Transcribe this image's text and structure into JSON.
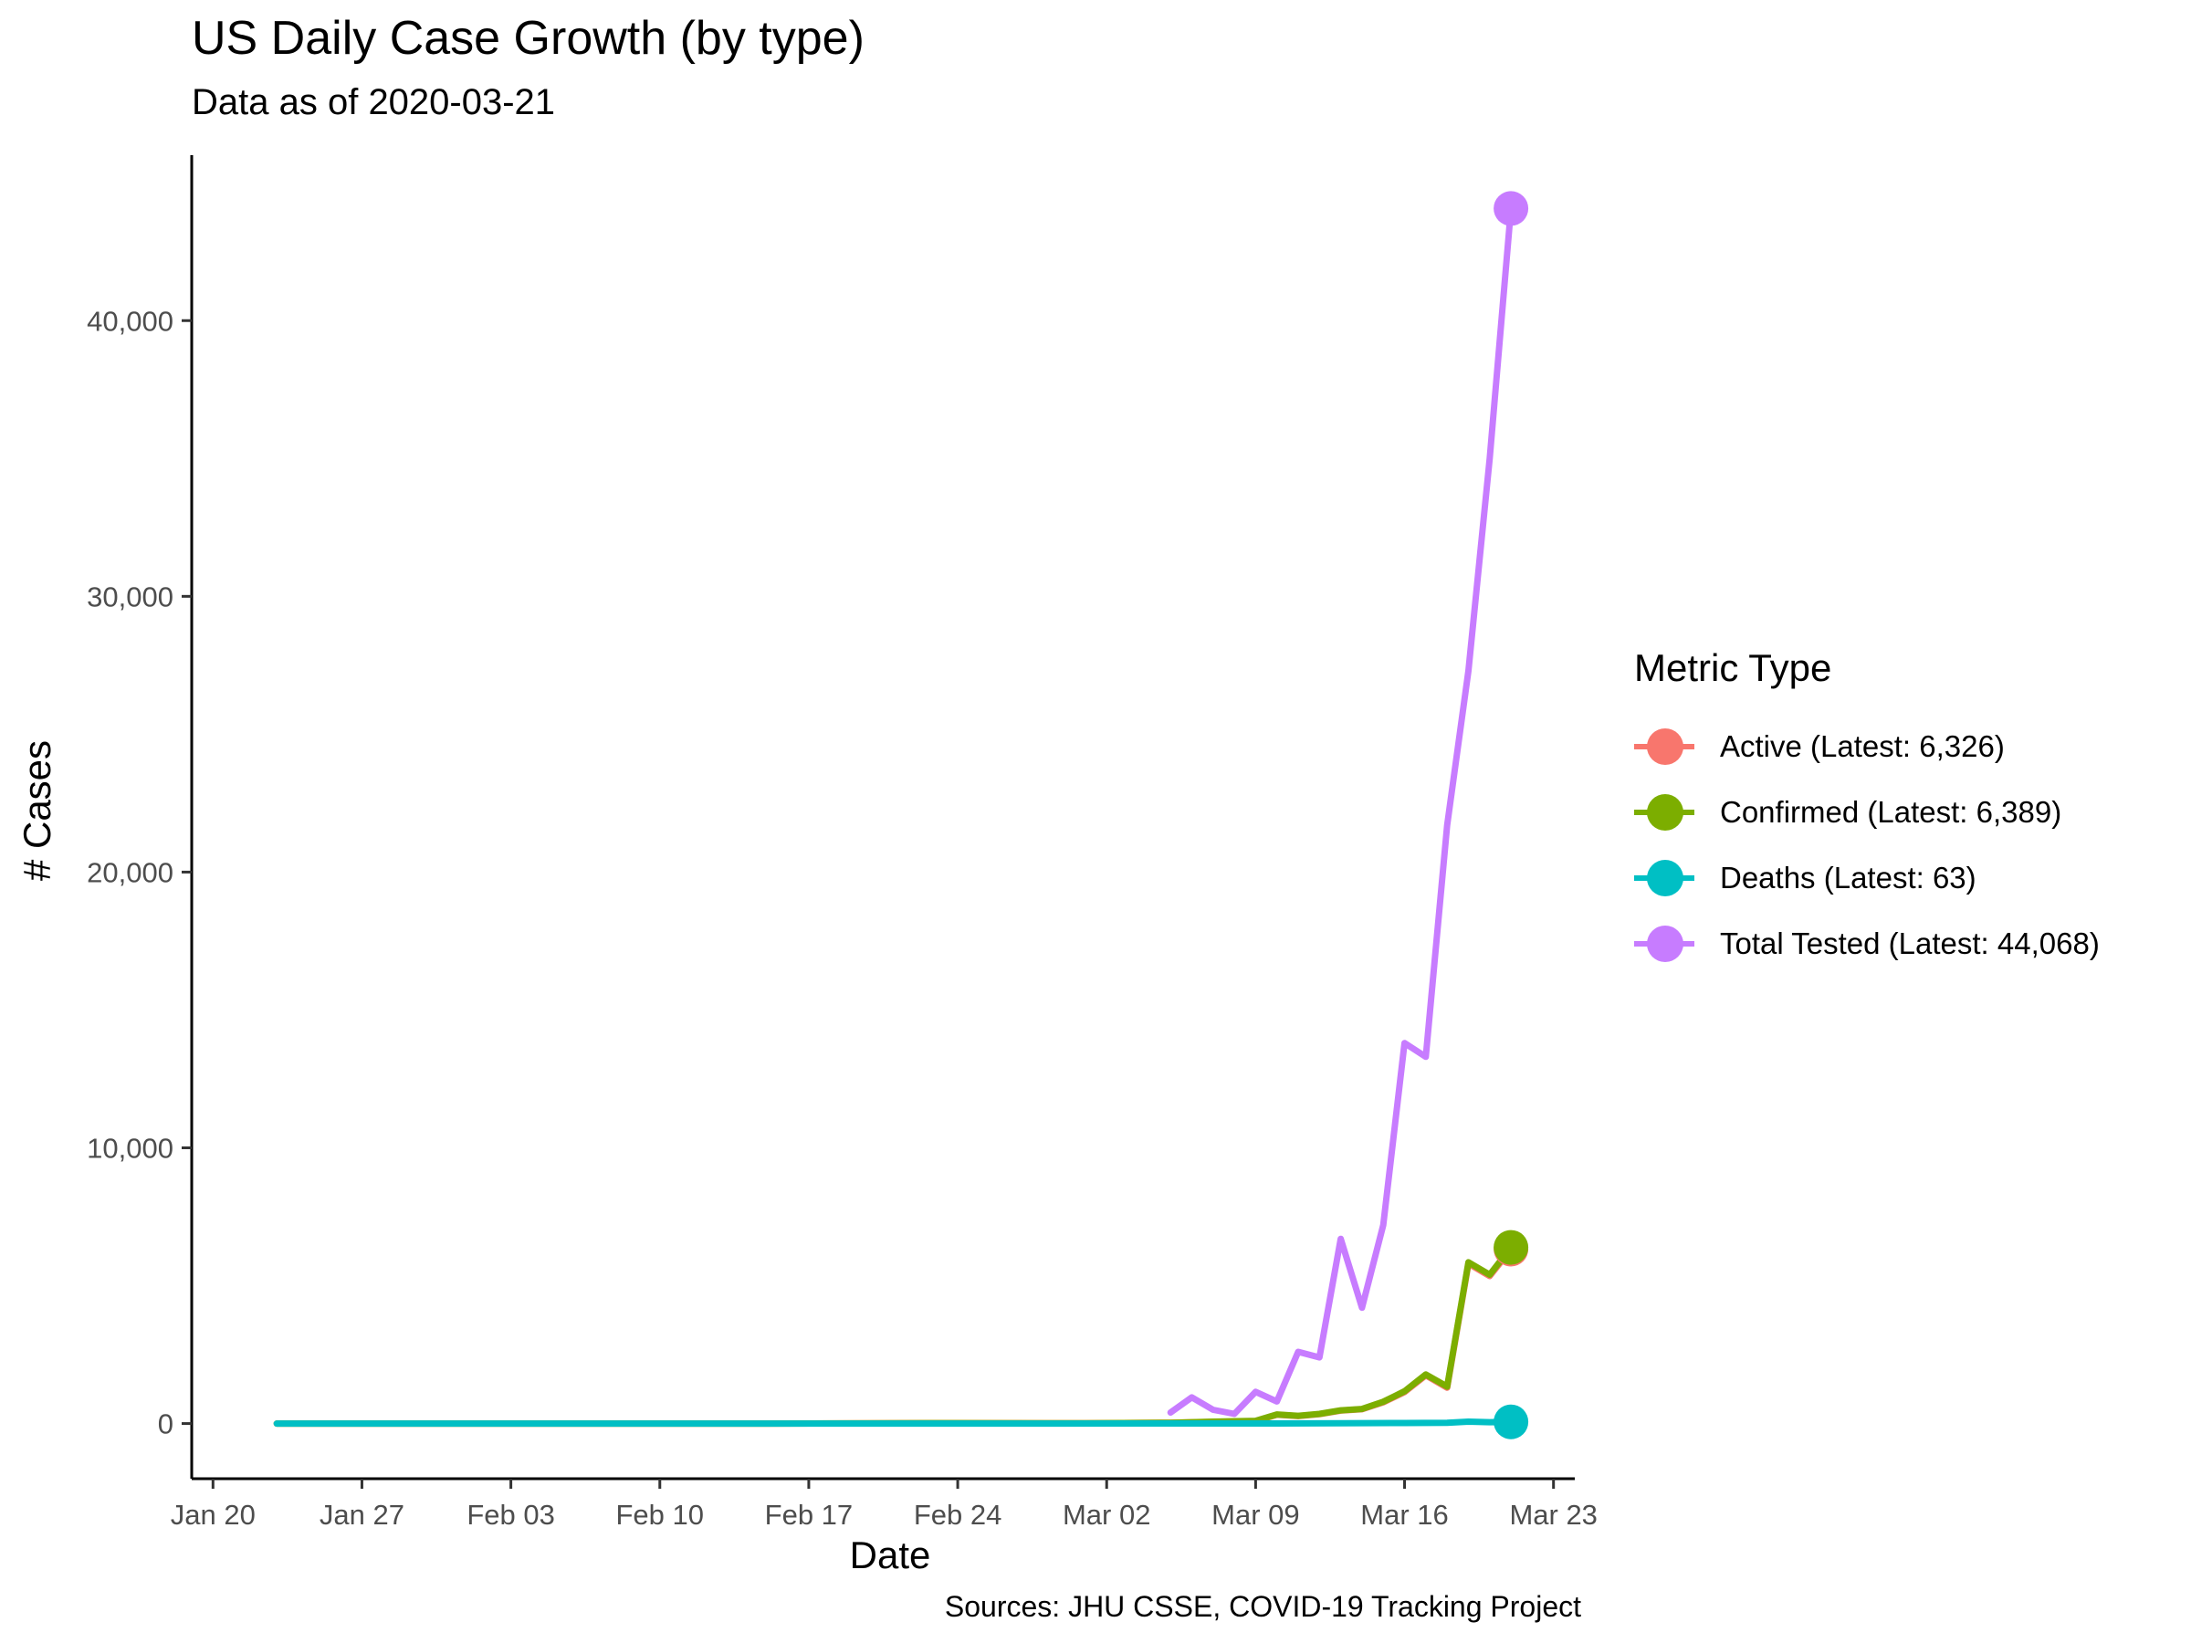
{
  "chart_data": {
    "type": "line",
    "title": "US Daily Case Growth (by type)",
    "subtitle": "Data as of 2020-03-21",
    "xlabel": "Date",
    "ylabel": "# Cases",
    "caption": "Sources: JHU CSSE, COVID-19 Tracking Project",
    "legend_title": "Metric Type",
    "legend_position": "right",
    "grid": false,
    "x_type": "date",
    "xlim": [
      "2020-01-19",
      "2020-03-24"
    ],
    "ylim": [
      -2000,
      46000
    ],
    "x_ticks": [
      {
        "date": "2020-01-20",
        "label": "Jan 20"
      },
      {
        "date": "2020-01-27",
        "label": "Jan 27"
      },
      {
        "date": "2020-02-03",
        "label": "Feb 03"
      },
      {
        "date": "2020-02-10",
        "label": "Feb 10"
      },
      {
        "date": "2020-02-17",
        "label": "Feb 17"
      },
      {
        "date": "2020-02-24",
        "label": "Feb 24"
      },
      {
        "date": "2020-03-02",
        "label": "Mar 02"
      },
      {
        "date": "2020-03-09",
        "label": "Mar 09"
      },
      {
        "date": "2020-03-16",
        "label": "Mar 16"
      },
      {
        "date": "2020-03-23",
        "label": "Mar 23"
      }
    ],
    "y_ticks": [
      {
        "value": 0,
        "label": "0"
      },
      {
        "value": 10000,
        "label": "10,000"
      },
      {
        "value": 20000,
        "label": "20,000"
      },
      {
        "value": 30000,
        "label": "30,000"
      },
      {
        "value": 40000,
        "label": "40,000"
      }
    ],
    "series": [
      {
        "name": "Active (Latest: 6,326)",
        "color": "#F8766D",
        "dates": [
          "2020-01-23",
          "2020-02-01",
          "2020-02-15",
          "2020-02-24",
          "2020-03-01",
          "2020-03-05",
          "2020-03-07",
          "2020-03-09",
          "2020-03-10",
          "2020-03-11",
          "2020-03-12",
          "2020-03-13",
          "2020-03-14",
          "2020-03-15",
          "2020-03-16",
          "2020-03-17",
          "2020-03-18",
          "2020-03-19",
          "2020-03-20",
          "2020-03-21"
        ],
        "values": [
          0,
          0,
          0,
          15,
          10,
          30,
          60,
          90,
          320,
          270,
          340,
          470,
          520,
          770,
          1140,
          1750,
          1300,
          5800,
          5350,
          6326
        ]
      },
      {
        "name": "Confirmed (Latest: 6,389)",
        "color": "#7CAE00",
        "dates": [
          "2020-01-23",
          "2020-02-01",
          "2020-02-15",
          "2020-02-24",
          "2020-03-01",
          "2020-03-05",
          "2020-03-07",
          "2020-03-09",
          "2020-03-10",
          "2020-03-11",
          "2020-03-12",
          "2020-03-13",
          "2020-03-14",
          "2020-03-15",
          "2020-03-16",
          "2020-03-17",
          "2020-03-18",
          "2020-03-19",
          "2020-03-20",
          "2020-03-21"
        ],
        "values": [
          0,
          0,
          0,
          15,
          10,
          30,
          70,
          100,
          330,
          280,
          350,
          480,
          530,
          790,
          1170,
          1780,
          1340,
          5850,
          5400,
          6389
        ]
      },
      {
        "name": "Deaths (Latest: 63)",
        "color": "#00BFC4",
        "dates": [
          "2020-01-23",
          "2020-02-01",
          "2020-02-15",
          "2020-02-29",
          "2020-03-05",
          "2020-03-10",
          "2020-03-13",
          "2020-03-16",
          "2020-03-18",
          "2020-03-19",
          "2020-03-20",
          "2020-03-21"
        ],
        "values": [
          0,
          0,
          0,
          1,
          2,
          4,
          10,
          18,
          25,
          70,
          50,
          63
        ]
      },
      {
        "name": "Total Tested (Latest: 44,068)",
        "color": "#C77CFF",
        "dates": [
          "2020-03-05",
          "2020-03-06",
          "2020-03-07",
          "2020-03-08",
          "2020-03-09",
          "2020-03-10",
          "2020-03-11",
          "2020-03-12",
          "2020-03-13",
          "2020-03-14",
          "2020-03-15",
          "2020-03-16",
          "2020-03-17",
          "2020-03-18",
          "2020-03-19",
          "2020-03-20",
          "2020-03-21"
        ],
        "values": [
          400,
          950,
          500,
          350,
          1150,
          800,
          2600,
          2400,
          6700,
          4200,
          7200,
          13800,
          13300,
          21700,
          27300,
          35000,
          44068
        ]
      }
    ]
  }
}
